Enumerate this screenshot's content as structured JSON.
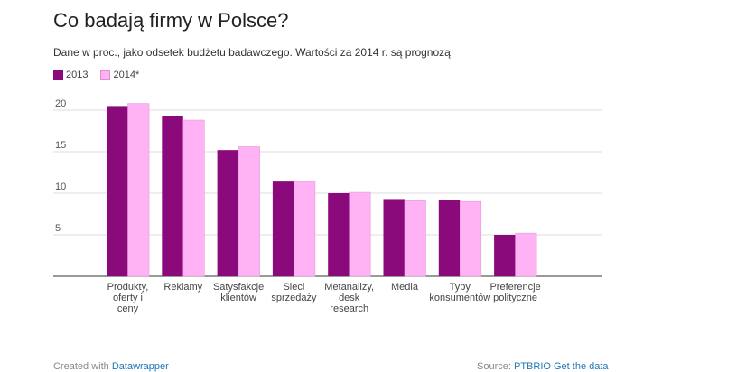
{
  "title": "Co badają firmy w Polsce?",
  "subtitle": "Dane w proc., jako odsetek budżetu badawczego. Wartości za 2014 r. są prognozą",
  "footer": {
    "created_prefix": "Created with",
    "created_link": "Datawrapper",
    "source_prefix": "Source:",
    "source_link": "PTBRIO",
    "get_data": "Get the data"
  },
  "chart_data": {
    "type": "bar",
    "categories": [
      [
        "Produkty,",
        "oferty i",
        "ceny"
      ],
      [
        "Reklamy"
      ],
      [
        "Satysfakcje",
        "klientów"
      ],
      [
        "Sieci",
        "sprzedaży"
      ],
      [
        "Metanalizy,",
        "desk",
        "research"
      ],
      [
        "Media"
      ],
      [
        "Typy",
        "konsumentów"
      ],
      [
        "Preferencje",
        "polityczne"
      ]
    ],
    "series": [
      {
        "name": "2013",
        "color": "#8b0a7b",
        "values": [
          20.5,
          19.3,
          15.2,
          11.4,
          10.0,
          9.3,
          9.2,
          5.0
        ]
      },
      {
        "name": "2014*",
        "color": "#ffb3f5",
        "values": [
          20.8,
          18.8,
          15.6,
          11.4,
          10.1,
          9.1,
          9.0,
          5.2
        ]
      }
    ],
    "yticks": [
      5,
      10,
      15,
      20
    ],
    "ylim": [
      0,
      22
    ],
    "grid": true,
    "legend_position": "top-left"
  }
}
